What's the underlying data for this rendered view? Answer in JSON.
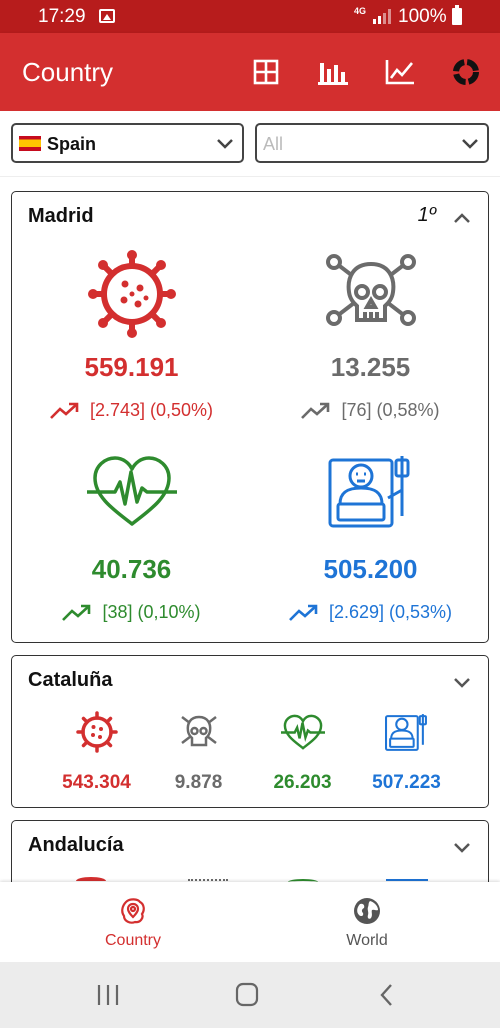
{
  "status_bar": {
    "time": "17:29",
    "network": "4G",
    "battery": "100%"
  },
  "app_bar": {
    "title": "Country",
    "actions": [
      "grid-view",
      "bar-chart",
      "line-chart",
      "donut-chart"
    ]
  },
  "filters": {
    "country": {
      "value": "Spain",
      "flag": "spain-flag"
    },
    "region": {
      "placeholder": "All"
    }
  },
  "colors": {
    "appbar": "#d32f2f",
    "confirmed": "#d32f2f",
    "deaths": "#6b6b6b",
    "recovered": "#2e8b2e",
    "hospitalized": "#1e74d6"
  },
  "regions": [
    {
      "name": "Madrid",
      "rank": "1º",
      "expanded": true,
      "confirmed": {
        "value": "559.191",
        "trend": "[2.743] (0,50%)"
      },
      "deaths": {
        "value": "13.255",
        "trend": "[76] (0,58%)"
      },
      "recovered": {
        "value": "40.736",
        "trend": "[38] (0,10%)"
      },
      "hospitalized": {
        "value": "505.200",
        "trend": "[2.629] (0,53%)"
      }
    },
    {
      "name": "Cataluña",
      "expanded": false,
      "confirmed": {
        "value": "543.304"
      },
      "deaths": {
        "value": "9.878"
      },
      "recovered": {
        "value": "26.203"
      },
      "hospitalized": {
        "value": "507.223"
      }
    },
    {
      "name": "Andalucía",
      "expanded": false
    }
  ],
  "bottom_nav": [
    {
      "label": "Country",
      "icon": "map-pin-icon",
      "active": true
    },
    {
      "label": "World",
      "icon": "globe-icon",
      "active": false
    }
  ]
}
